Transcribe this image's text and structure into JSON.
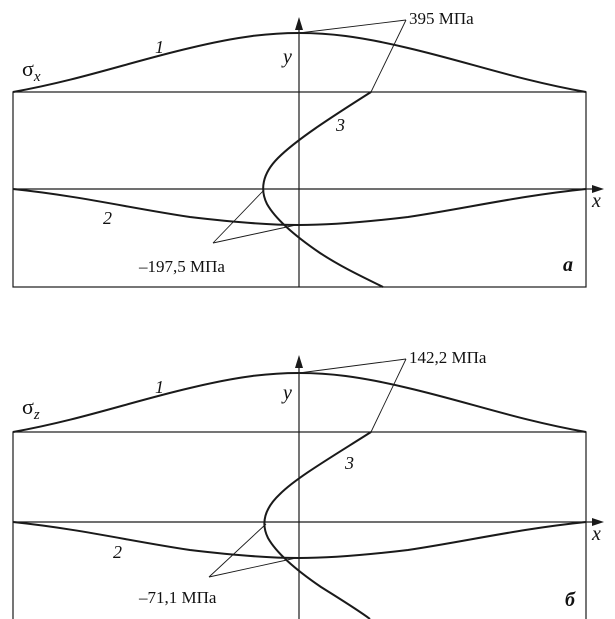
{
  "panels": [
    {
      "id": "a",
      "stress_symbol": "σ",
      "stress_subscript": "x",
      "letter": "a",
      "max_label": "395 МПа",
      "min_label": "–197,5 МПа",
      "curve_labels": [
        "1",
        "2",
        "3"
      ],
      "axis_x": "x",
      "axis_y": "y"
    },
    {
      "id": "b",
      "stress_symbol": "σ",
      "stress_subscript": "z",
      "letter": "б",
      "max_label": "142,2 МПа",
      "min_label": "–71,1 МПа",
      "curve_labels": [
        "1",
        "2",
        "3"
      ],
      "axis_x": "x",
      "axis_y": "y"
    }
  ]
}
